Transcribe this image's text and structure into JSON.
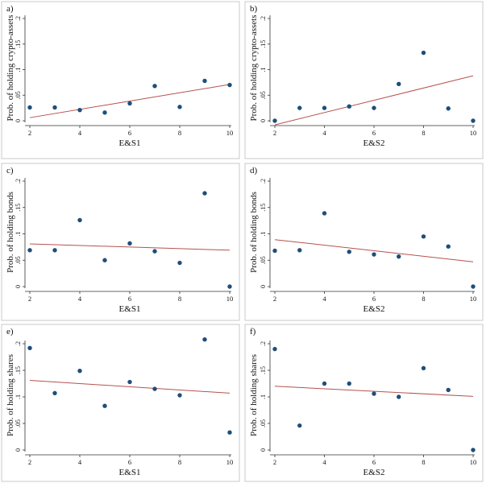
{
  "chart_data": [
    {
      "panel_label": "a)",
      "type": "scatter",
      "xlabel": "E&S1",
      "ylabel": "Prob. of holding crypto-assets",
      "xlim": [
        2,
        10
      ],
      "ylim": [
        0,
        0.2
      ],
      "xticks": [
        2,
        4,
        6,
        8,
        10
      ],
      "yticks": [
        0,
        0.05,
        0.1,
        0.15,
        0.2
      ],
      "ytick_labels": [
        "0",
        ".05",
        ".1",
        ".15",
        ".2"
      ],
      "x": [
        2,
        3,
        4,
        5,
        6,
        7,
        8,
        9,
        10
      ],
      "y": [
        0.026,
        0.026,
        0.021,
        0.016,
        0.034,
        0.068,
        0.027,
        0.078,
        0.07
      ],
      "fit_line": {
        "x": [
          2,
          10
        ],
        "y": [
          0.006,
          0.071
        ]
      },
      "grid": false,
      "legend": "none"
    },
    {
      "panel_label": "b)",
      "type": "scatter",
      "xlabel": "E&S2",
      "ylabel": "Prob. of holding crypto-assets",
      "xlim": [
        2,
        10
      ],
      "ylim": [
        0,
        0.2
      ],
      "xticks": [
        2,
        4,
        6,
        8,
        10
      ],
      "yticks": [
        0,
        0.05,
        0.1,
        0.15,
        0.2
      ],
      "ytick_labels": [
        "0",
        ".05",
        ".1",
        ".15",
        ".2"
      ],
      "x": [
        2,
        3,
        4,
        5,
        6,
        7,
        8,
        9,
        10
      ],
      "y": [
        0.0,
        0.025,
        0.025,
        0.028,
        0.025,
        0.072,
        0.133,
        0.024,
        0.0
      ],
      "fit_line": {
        "x": [
          2,
          10
        ],
        "y": [
          -0.008,
          0.088
        ]
      },
      "grid": false,
      "legend": "none"
    },
    {
      "panel_label": "c)",
      "type": "scatter",
      "xlabel": "E&S1",
      "ylabel": "Prob. of holding bonds",
      "xlim": [
        2,
        10
      ],
      "ylim": [
        0,
        0.2
      ],
      "xticks": [
        2,
        4,
        6,
        8,
        10
      ],
      "yticks": [
        0,
        0.05,
        0.1,
        0.15,
        0.2
      ],
      "ytick_labels": [
        "0",
        ".05",
        ".1",
        ".15",
        ".2"
      ],
      "x": [
        2,
        3,
        4,
        5,
        6,
        7,
        8,
        9,
        10
      ],
      "y": [
        0.069,
        0.069,
        0.126,
        0.05,
        0.082,
        0.067,
        0.045,
        0.177,
        0.0
      ],
      "fit_line": {
        "x": [
          2,
          10
        ],
        "y": [
          0.081,
          0.069
        ]
      },
      "grid": false,
      "legend": "none"
    },
    {
      "panel_label": "d)",
      "type": "scatter",
      "xlabel": "E&S2",
      "ylabel": "Prob. of holding bonds",
      "xlim": [
        2,
        10
      ],
      "ylim": [
        0,
        0.2
      ],
      "xticks": [
        2,
        4,
        6,
        8,
        10
      ],
      "yticks": [
        0,
        0.05,
        0.1,
        0.15,
        0.2
      ],
      "ytick_labels": [
        "0",
        ".05",
        ".1",
        ".15",
        ".2"
      ],
      "x": [
        2,
        3,
        4,
        5,
        6,
        7,
        8,
        9,
        10
      ],
      "y": [
        0.068,
        0.069,
        0.139,
        0.066,
        0.061,
        0.057,
        0.095,
        0.076,
        0.0
      ],
      "fit_line": {
        "x": [
          2,
          10
        ],
        "y": [
          0.089,
          0.047
        ]
      },
      "grid": false,
      "legend": "none"
    },
    {
      "panel_label": "e)",
      "type": "scatter",
      "xlabel": "E&S1",
      "ylabel": "Prob. of holding shares",
      "xlim": [
        2,
        10
      ],
      "ylim": [
        0,
        0.2
      ],
      "xticks": [
        2,
        4,
        6,
        8,
        10
      ],
      "yticks": [
        0,
        0.05,
        0.1,
        0.15,
        0.2
      ],
      "ytick_labels": [
        "0",
        ".05",
        ".1",
        ".15",
        ".2"
      ],
      "x": [
        2,
        3,
        4,
        5,
        6,
        7,
        8,
        9,
        10
      ],
      "y": [
        0.192,
        0.107,
        0.149,
        0.083,
        0.128,
        0.115,
        0.103,
        0.208,
        0.033
      ],
      "fit_line": {
        "x": [
          2,
          10
        ],
        "y": [
          0.131,
          0.107
        ]
      },
      "grid": false,
      "legend": "none"
    },
    {
      "panel_label": "f)",
      "type": "scatter",
      "xlabel": "E&S2",
      "ylabel": "Prob. of holding shares",
      "xlim": [
        2,
        10
      ],
      "ylim": [
        0,
        0.2
      ],
      "xticks": [
        2,
        4,
        6,
        8,
        10
      ],
      "yticks": [
        0,
        0.05,
        0.1,
        0.15,
        0.2
      ],
      "ytick_labels": [
        "0",
        ".05",
        ".1",
        ".15",
        ".2"
      ],
      "x": [
        2,
        3,
        4,
        5,
        6,
        7,
        8,
        9,
        10
      ],
      "y": [
        0.19,
        0.046,
        0.125,
        0.125,
        0.106,
        0.1,
        0.154,
        0.113,
        0.0
      ],
      "fit_line": {
        "x": [
          2,
          10
        ],
        "y": [
          0.12,
          0.101
        ]
      },
      "grid": false,
      "legend": "none"
    }
  ],
  "colors": {
    "marker": "#1f4e79",
    "fit_line": "#b5524f",
    "axis": "#333333",
    "panel_border": "#c8c8c8"
  }
}
